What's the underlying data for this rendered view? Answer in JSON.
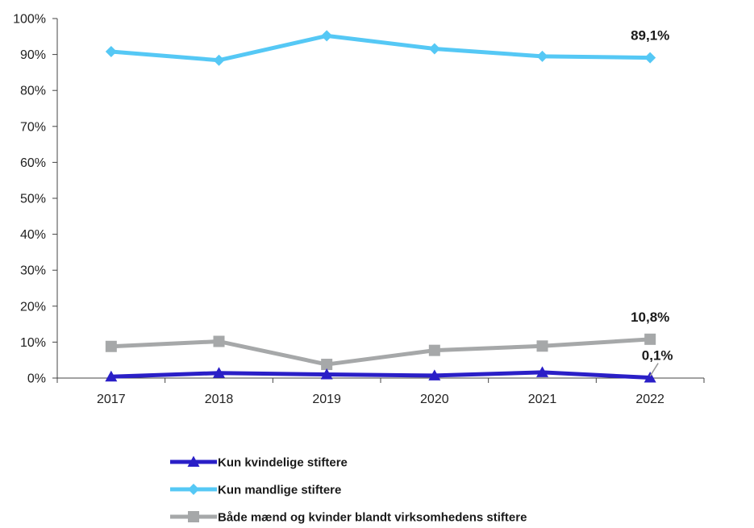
{
  "chart_data": {
    "type": "line",
    "categories": [
      "2017",
      "2018",
      "2019",
      "2020",
      "2021",
      "2022"
    ],
    "ylim": [
      0,
      100
    ],
    "yticks": [
      "0%",
      "10%",
      "20%",
      "30%",
      "40%",
      "50%",
      "60%",
      "70%",
      "80%",
      "90%",
      "100%"
    ],
    "grid": false,
    "legend_position": "bottom",
    "series": [
      {
        "name": "Kun kvindelige stiftere",
        "values": [
          0.4,
          1.4,
          1.0,
          0.7,
          1.6,
          0.1
        ],
        "color": "#2a1fc7",
        "marker": "triangle",
        "end_label": "0,1%"
      },
      {
        "name": "Kun mandlige stiftere",
        "values": [
          90.8,
          88.4,
          95.2,
          91.6,
          89.5,
          89.1
        ],
        "color": "#55c8f5",
        "marker": "diamond",
        "end_label": "89,1%"
      },
      {
        "name": "Både mænd og kvinder blandt virksomhedens stiftere",
        "values": [
          8.8,
          10.2,
          3.8,
          7.7,
          8.9,
          10.8
        ],
        "color": "#a6a8a9",
        "marker": "square",
        "end_label": "10,8%"
      }
    ]
  }
}
